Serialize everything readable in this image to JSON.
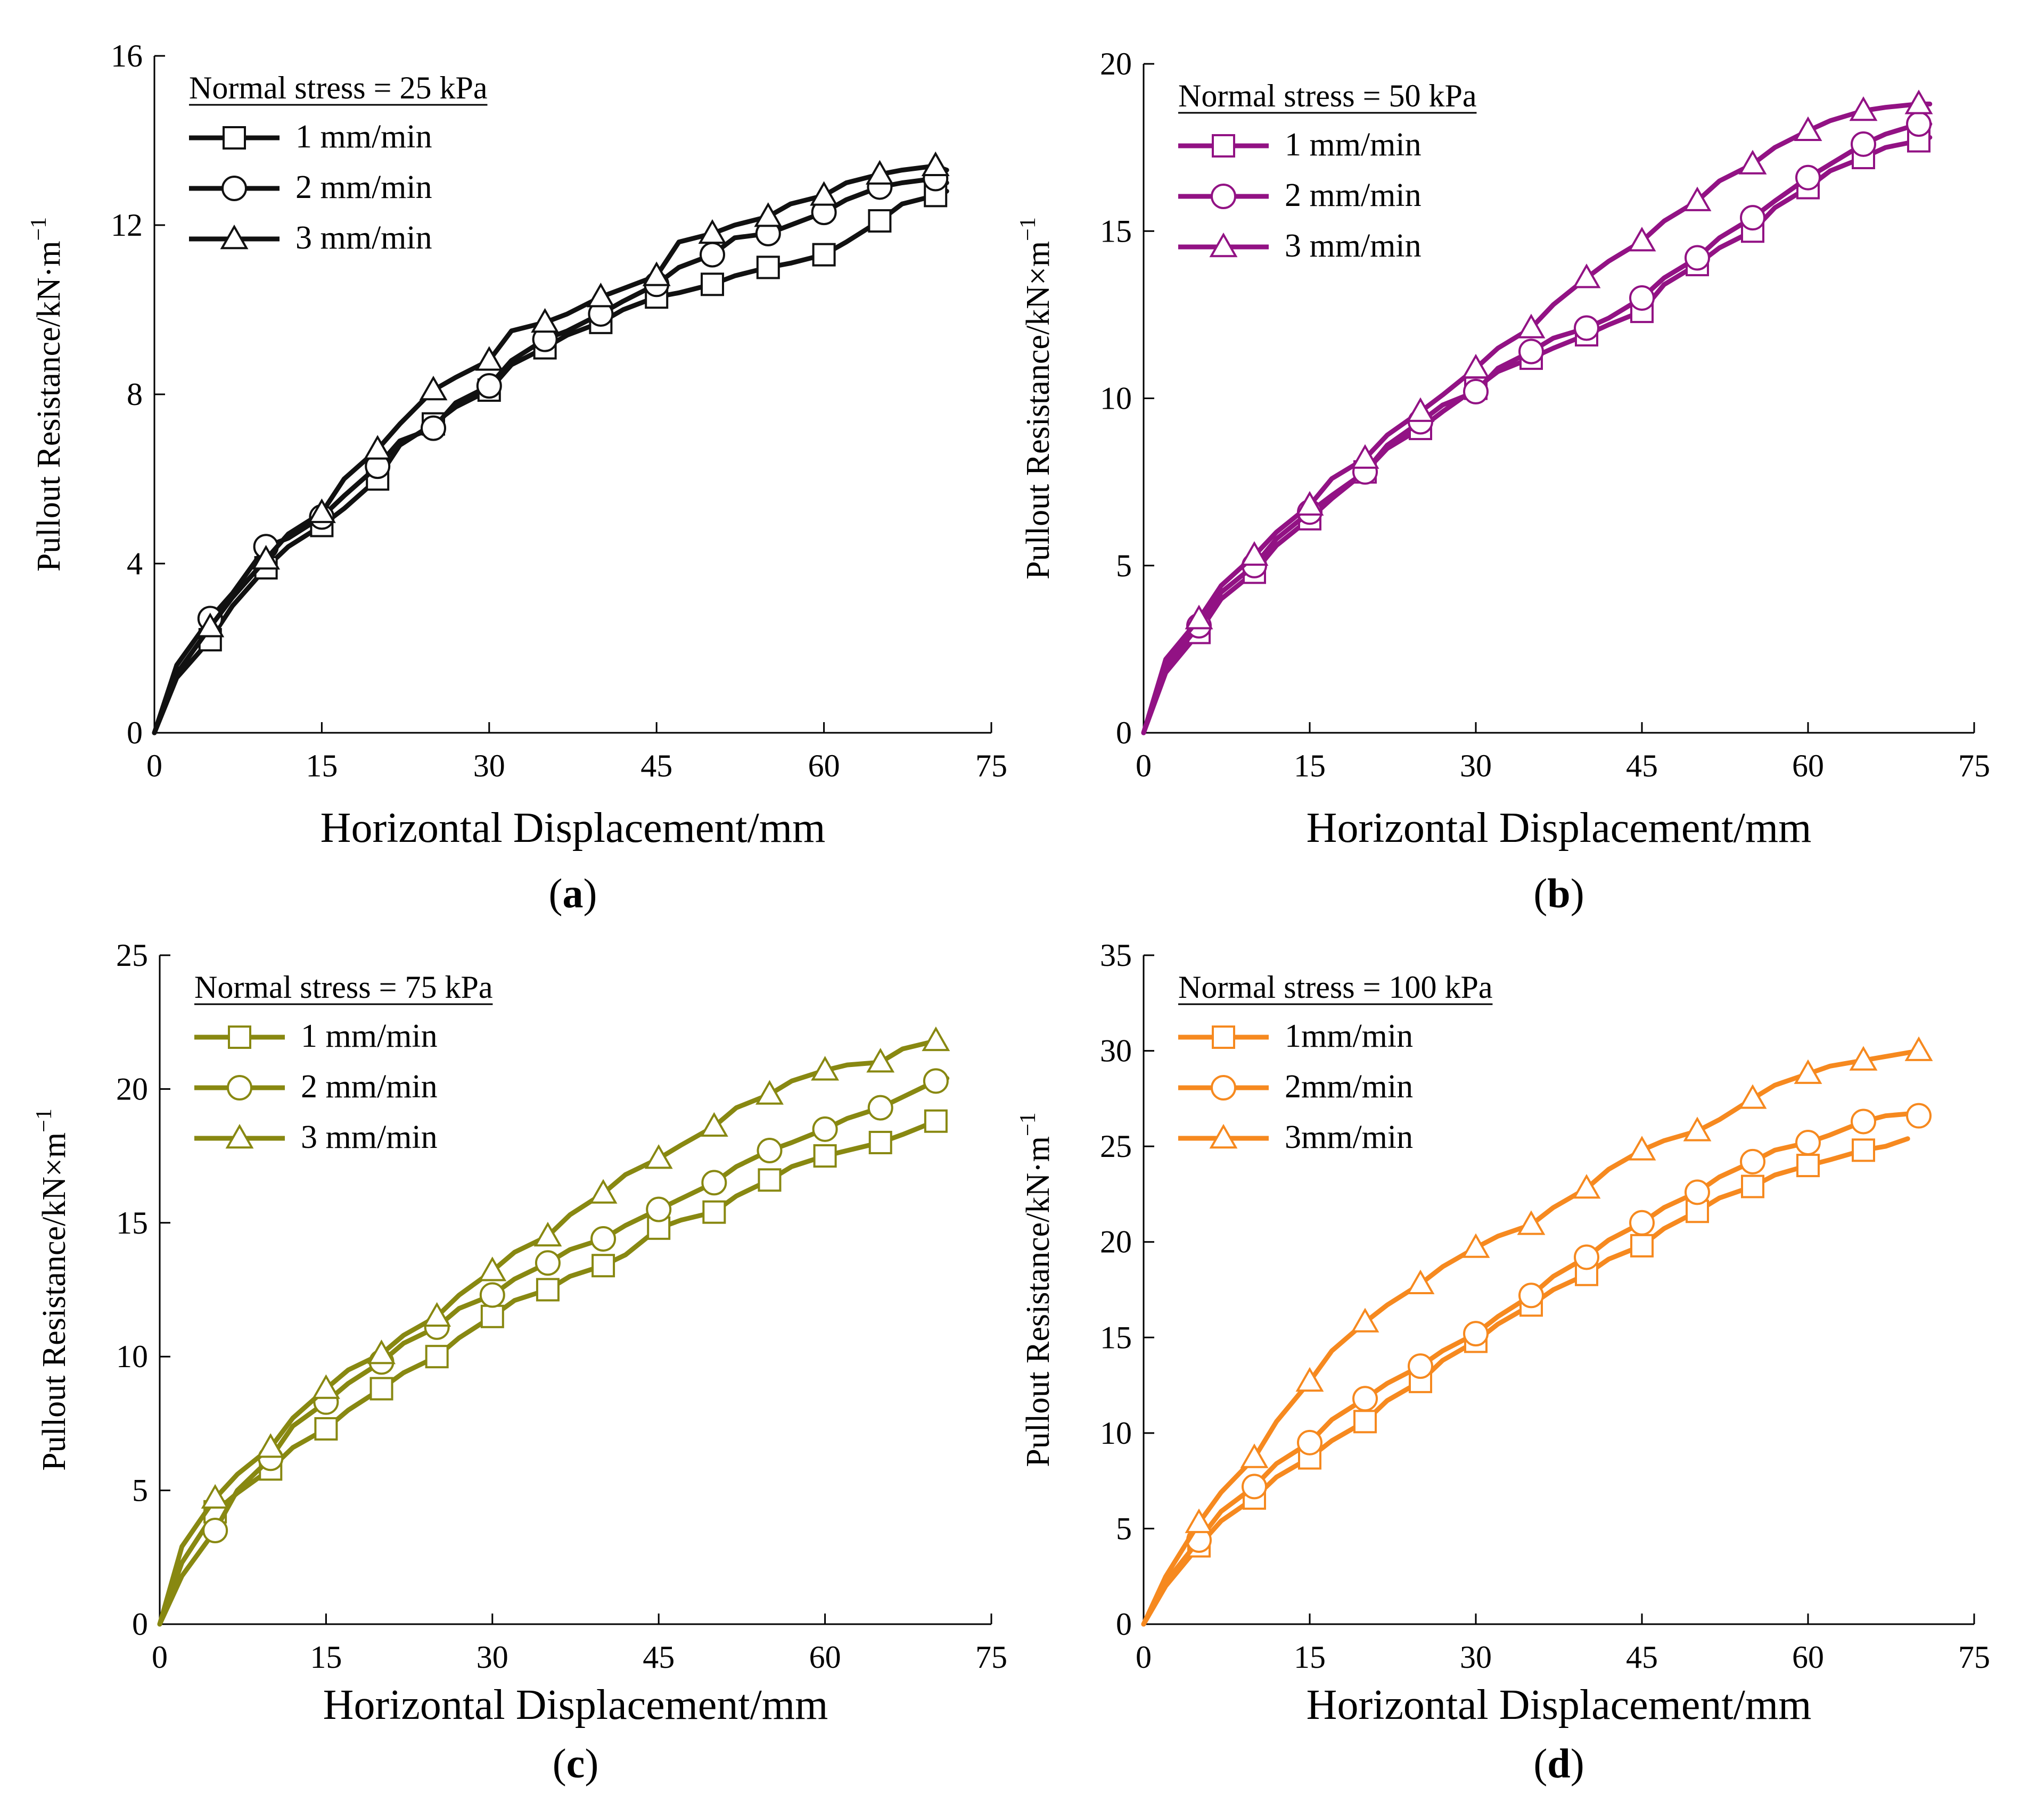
{
  "chart_data": [
    {
      "type": "line",
      "panel_label": "a",
      "xlabel": "Horizontal Displacement/mm",
      "ylabel": "Pullout Resistance/kN·m",
      "ylabel_sup": "−1",
      "legend_title": "Normal stress = 25 kPa",
      "legend_position": "top-left",
      "color": "#111111",
      "xlim": [
        0,
        75
      ],
      "xticks": [
        0,
        15,
        30,
        45,
        60,
        75
      ],
      "ylim": [
        0,
        16
      ],
      "yticks": [
        0,
        4,
        8,
        12,
        16
      ],
      "series": [
        {
          "name": "1 mm/min",
          "marker": "square",
          "x": [
            0,
            2,
            5,
            7,
            10,
            12,
            15,
            17,
            20,
            22,
            25,
            27,
            30,
            32,
            35,
            37,
            40,
            42,
            45,
            47,
            50,
            52,
            55,
            57,
            60,
            62,
            65,
            67,
            70,
            71
          ],
          "y": [
            0,
            1.3,
            2.2,
            3.0,
            3.9,
            4.4,
            4.9,
            5.3,
            6.0,
            6.8,
            7.3,
            7.7,
            8.1,
            8.7,
            9.1,
            9.4,
            9.7,
            10.0,
            10.3,
            10.4,
            10.6,
            10.8,
            11.0,
            11.1,
            11.3,
            11.6,
            12.1,
            12.5,
            12.7,
            12.8
          ]
        },
        {
          "name": "2 mm/min",
          "marker": "circle",
          "x": [
            0,
            2,
            5,
            7,
            10,
            12,
            15,
            17,
            20,
            22,
            25,
            27,
            30,
            32,
            35,
            37,
            40,
            42,
            45,
            47,
            50,
            52,
            55,
            57,
            60,
            62,
            65,
            67,
            70,
            71
          ],
          "y": [
            0,
            1.6,
            2.7,
            3.3,
            4.4,
            4.6,
            5.1,
            5.6,
            6.3,
            6.9,
            7.2,
            7.8,
            8.2,
            8.8,
            9.3,
            9.5,
            9.9,
            10.2,
            10.6,
            11.0,
            11.3,
            11.7,
            11.8,
            12.0,
            12.3,
            12.6,
            12.9,
            13.0,
            13.1,
            13.0
          ]
        },
        {
          "name": "3 mm/min",
          "marker": "triangle",
          "x": [
            0,
            2,
            5,
            7,
            10,
            12,
            15,
            17,
            20,
            22,
            25,
            27,
            30,
            32,
            35,
            37,
            40,
            42,
            45,
            47,
            50,
            52,
            55,
            57,
            60,
            62,
            65,
            67,
            70,
            71
          ],
          "y": [
            0,
            1.4,
            2.5,
            3.2,
            4.1,
            4.7,
            5.2,
            6.0,
            6.7,
            7.3,
            8.1,
            8.4,
            8.8,
            9.5,
            9.7,
            9.9,
            10.3,
            10.5,
            10.8,
            11.6,
            11.8,
            12.0,
            12.2,
            12.5,
            12.7,
            13.0,
            13.2,
            13.3,
            13.4,
            13.3
          ]
        }
      ]
    },
    {
      "type": "line",
      "panel_label": "b",
      "xlabel": "Horizontal Displacement/mm",
      "ylabel": "Pullout Resistance/kN×m",
      "ylabel_sup": "−1",
      "legend_title": "Normal stress = 50 kPa",
      "legend_position": "top-left",
      "color": "#921284",
      "xlim": [
        0,
        75
      ],
      "xticks": [
        0,
        15,
        30,
        45,
        60,
        75
      ],
      "ylim": [
        0,
        20
      ],
      "yticks": [
        0,
        5,
        10,
        15,
        20
      ],
      "series": [
        {
          "name": "1 mm/min",
          "marker": "square",
          "x": [
            0,
            2,
            5,
            7,
            10,
            12,
            15,
            17,
            20,
            22,
            25,
            27,
            30,
            32,
            35,
            37,
            40,
            42,
            45,
            47,
            50,
            52,
            55,
            57,
            60,
            62,
            65,
            67,
            70,
            71
          ],
          "y": [
            0,
            1.8,
            3.0,
            4.0,
            4.8,
            5.6,
            6.4,
            7.0,
            7.8,
            8.5,
            9.1,
            9.6,
            10.3,
            10.8,
            11.2,
            11.5,
            11.9,
            12.2,
            12.6,
            13.4,
            14.0,
            14.5,
            15.0,
            15.7,
            16.3,
            16.8,
            17.2,
            17.5,
            17.7,
            17.8
          ]
        },
        {
          "name": "2 mm/min",
          "marker": "circle",
          "x": [
            0,
            2,
            5,
            7,
            10,
            12,
            15,
            17,
            20,
            22,
            25,
            27,
            30,
            32,
            35,
            37,
            40,
            42,
            45,
            47,
            50,
            52,
            55,
            57,
            60,
            62,
            65,
            67,
            70,
            71
          ],
          "y": [
            0,
            2.0,
            3.2,
            4.2,
            5.0,
            5.8,
            6.6,
            7.1,
            7.8,
            8.6,
            9.3,
            9.8,
            10.2,
            10.9,
            11.4,
            11.8,
            12.1,
            12.4,
            13.0,
            13.6,
            14.2,
            14.8,
            15.4,
            15.9,
            16.6,
            17.0,
            17.6,
            17.9,
            18.2,
            18.2
          ]
        },
        {
          "name": "3 mm/min",
          "marker": "triangle",
          "x": [
            0,
            2,
            5,
            7,
            10,
            12,
            15,
            17,
            20,
            22,
            25,
            27,
            30,
            32,
            35,
            37,
            40,
            42,
            45,
            47,
            50,
            52,
            55,
            57,
            60,
            62,
            65,
            67,
            70,
            71
          ],
          "y": [
            0,
            2.2,
            3.4,
            4.4,
            5.3,
            6.0,
            6.8,
            7.6,
            8.2,
            8.9,
            9.6,
            10.1,
            10.9,
            11.5,
            12.1,
            12.8,
            13.6,
            14.1,
            14.7,
            15.3,
            15.9,
            16.5,
            17.0,
            17.5,
            18.0,
            18.3,
            18.6,
            18.7,
            18.8,
            18.8
          ]
        }
      ]
    },
    {
      "type": "line",
      "panel_label": "c",
      "xlabel": "Horizontal Displacement/mm",
      "ylabel": "Pullout Resistance/kN×m",
      "ylabel_sup": "−1",
      "legend_title": "Normal stress = 75 kPa",
      "legend_position": "top-left",
      "color": "#888811",
      "xlim": [
        0,
        75
      ],
      "xticks": [
        0,
        15,
        30,
        45,
        60,
        75
      ],
      "ylim": [
        0,
        25
      ],
      "yticks": [
        0,
        5,
        10,
        15,
        20,
        25
      ],
      "series": [
        {
          "name": "1 mm/min",
          "marker": "square",
          "x": [
            0,
            2,
            5,
            7,
            10,
            12,
            15,
            17,
            20,
            22,
            25,
            27,
            30,
            32,
            35,
            37,
            40,
            42,
            45,
            47,
            50,
            52,
            55,
            57,
            60,
            62,
            65,
            67,
            70
          ],
          "y": [
            0,
            2.3,
            4.2,
            4.9,
            5.8,
            6.6,
            7.3,
            8.0,
            8.8,
            9.4,
            10.0,
            10.7,
            11.5,
            12.1,
            12.5,
            13.0,
            13.4,
            13.8,
            14.8,
            15.1,
            15.4,
            16.0,
            16.6,
            17.1,
            17.5,
            17.7,
            18.0,
            18.3,
            18.8
          ]
        },
        {
          "name": "2 mm/min",
          "marker": "circle",
          "x": [
            0,
            2,
            5,
            7,
            10,
            12,
            15,
            17,
            20,
            22,
            25,
            27,
            30,
            32,
            35,
            37,
            40,
            42,
            45,
            47,
            50,
            52,
            55,
            57,
            60,
            62,
            65,
            67,
            70,
            71
          ],
          "y": [
            0,
            1.8,
            3.5,
            5.0,
            6.2,
            7.4,
            8.3,
            9.0,
            9.8,
            10.5,
            11.1,
            11.8,
            12.3,
            12.9,
            13.5,
            14.0,
            14.4,
            14.9,
            15.5,
            15.9,
            16.5,
            17.1,
            17.7,
            18.0,
            18.5,
            18.9,
            19.3,
            19.7,
            20.3,
            20.4
          ]
        },
        {
          "name": "3 mm/min",
          "marker": "triangle",
          "x": [
            0,
            2,
            5,
            7,
            10,
            12,
            15,
            17,
            20,
            22,
            25,
            27,
            30,
            32,
            35,
            37,
            40,
            42,
            45,
            47,
            50,
            52,
            55,
            57,
            60,
            62,
            65,
            67,
            70
          ],
          "y": [
            0,
            2.9,
            4.7,
            5.6,
            6.6,
            7.7,
            8.8,
            9.5,
            10.1,
            10.8,
            11.5,
            12.3,
            13.2,
            13.9,
            14.5,
            15.3,
            16.1,
            16.8,
            17.4,
            17.9,
            18.6,
            19.3,
            19.8,
            20.3,
            20.7,
            20.9,
            21.0,
            21.5,
            21.8
          ]
        }
      ]
    },
    {
      "type": "line",
      "panel_label": "d",
      "xlabel": "Horizontal Displacement/mm",
      "ylabel": "Pullout Resistance/kN·m",
      "ylabel_sup": "−1",
      "legend_title": "Normal stress = 100 kPa",
      "legend_position": "top-left",
      "color": "#F6891F",
      "xlim": [
        0,
        75
      ],
      "xticks": [
        0,
        15,
        30,
        45,
        60,
        75
      ],
      "ylim": [
        0,
        35
      ],
      "yticks": [
        0,
        5,
        10,
        15,
        20,
        25,
        30,
        35
      ],
      "series": [
        {
          "name": "1mm/min",
          "marker": "square",
          "x": [
            0,
            2,
            5,
            7,
            10,
            12,
            15,
            17,
            20,
            22,
            25,
            27,
            30,
            32,
            35,
            37,
            40,
            42,
            45,
            47,
            50,
            52,
            55,
            57,
            60,
            62,
            65,
            67,
            69
          ],
          "y": [
            0,
            2.0,
            4.1,
            5.4,
            6.6,
            7.7,
            8.7,
            9.6,
            10.6,
            11.7,
            12.7,
            13.8,
            14.8,
            15.7,
            16.7,
            17.5,
            18.3,
            19.1,
            19.8,
            20.7,
            21.6,
            22.3,
            22.9,
            23.5,
            24.0,
            24.3,
            24.8,
            25.0,
            25.4
          ]
        },
        {
          "name": "2mm/min",
          "marker": "circle",
          "x": [
            0,
            2,
            5,
            7,
            10,
            12,
            15,
            17,
            20,
            22,
            25,
            27,
            30,
            32,
            35,
            37,
            40,
            42,
            45,
            47,
            50,
            52,
            55,
            57,
            60,
            62,
            65,
            67,
            69,
            70
          ],
          "y": [
            0,
            2.2,
            4.4,
            5.9,
            7.2,
            8.4,
            9.5,
            10.7,
            11.8,
            12.6,
            13.5,
            14.3,
            15.2,
            16.1,
            17.2,
            18.2,
            19.2,
            20.1,
            21.0,
            21.8,
            22.6,
            23.4,
            24.2,
            24.8,
            25.2,
            25.6,
            26.3,
            26.6,
            26.7,
            26.6
          ]
        },
        {
          "name": "3mm/min",
          "marker": "triangle",
          "x": [
            0,
            2,
            5,
            7,
            10,
            12,
            15,
            17,
            20,
            22,
            25,
            27,
            30,
            32,
            35,
            37,
            40,
            42,
            45,
            47,
            50,
            52,
            55,
            57,
            60,
            62,
            65,
            67,
            70
          ],
          "y": [
            0,
            2.5,
            5.3,
            6.9,
            8.7,
            10.6,
            12.7,
            14.3,
            15.8,
            16.7,
            17.8,
            18.7,
            19.7,
            20.3,
            20.9,
            21.8,
            22.8,
            23.8,
            24.8,
            25.3,
            25.8,
            26.4,
            27.5,
            28.2,
            28.8,
            29.2,
            29.5,
            29.7,
            30.0
          ]
        }
      ]
    }
  ]
}
